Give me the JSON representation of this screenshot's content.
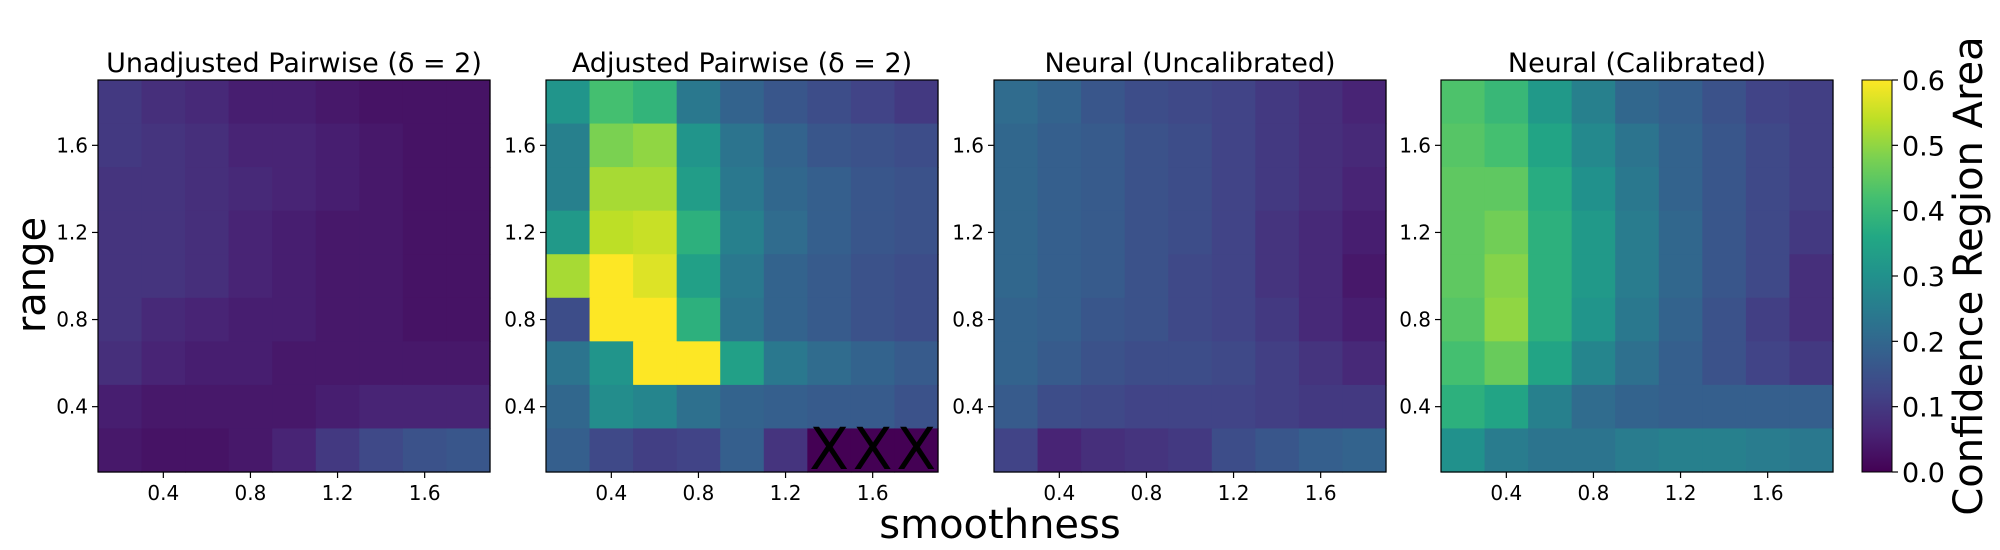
{
  "chart_data": {
    "type": "heatmap",
    "xlabel": "smoothness",
    "ylabel": "range",
    "x_ticks": [
      "0.4",
      "0.8",
      "1.2",
      "1.6"
    ],
    "y_ticks": [
      "0.4",
      "0.8",
      "1.2",
      "1.6"
    ],
    "x_range": [
      0.1,
      1.9
    ],
    "y_range": [
      0.1,
      1.9
    ],
    "grid_size": 9,
    "grid_centers": [
      0.2,
      0.4,
      0.6,
      0.8,
      1.0,
      1.2,
      1.4,
      1.6,
      1.8
    ],
    "colormap": "viridis",
    "colorbar": {
      "label": "Confidence Region Area",
      "range": [
        0.0,
        0.6
      ],
      "ticks": [
        "0.0",
        "0.1",
        "0.2",
        "0.3",
        "0.4",
        "0.5",
        "0.6"
      ]
    },
    "panels": [
      {
        "title": "Unadjusted Pairwise (δ = 2)",
        "rows_top_to_bottom": [
          [
            0.1,
            0.08,
            0.07,
            0.05,
            0.05,
            0.04,
            0.03,
            0.03,
            0.03
          ],
          [
            0.1,
            0.09,
            0.08,
            0.06,
            0.06,
            0.05,
            0.04,
            0.03,
            0.03
          ],
          [
            0.09,
            0.09,
            0.08,
            0.07,
            0.06,
            0.05,
            0.04,
            0.03,
            0.03
          ],
          [
            0.09,
            0.09,
            0.08,
            0.06,
            0.05,
            0.04,
            0.04,
            0.03,
            0.03
          ],
          [
            0.09,
            0.09,
            0.08,
            0.06,
            0.05,
            0.04,
            0.04,
            0.03,
            0.03
          ],
          [
            0.09,
            0.07,
            0.06,
            0.05,
            0.05,
            0.04,
            0.04,
            0.03,
            0.03
          ],
          [
            0.08,
            0.06,
            0.05,
            0.05,
            0.04,
            0.04,
            0.04,
            0.04,
            0.04
          ],
          [
            0.05,
            0.04,
            0.04,
            0.04,
            0.04,
            0.05,
            0.06,
            0.06,
            0.06
          ],
          [
            0.04,
            0.03,
            0.03,
            0.04,
            0.06,
            0.1,
            0.13,
            0.15,
            0.16
          ]
        ]
      },
      {
        "title": "Adjusted Pairwise (δ = 2)",
        "rows_top_to_bottom": [
          [
            0.31,
            0.42,
            0.39,
            0.24,
            0.19,
            0.16,
            0.14,
            0.12,
            0.1
          ],
          [
            0.26,
            0.48,
            0.5,
            0.31,
            0.23,
            0.19,
            0.16,
            0.15,
            0.14
          ],
          [
            0.26,
            0.52,
            0.52,
            0.33,
            0.24,
            0.2,
            0.18,
            0.16,
            0.15
          ],
          [
            0.32,
            0.54,
            0.55,
            0.38,
            0.26,
            0.21,
            0.18,
            0.16,
            0.15
          ],
          [
            0.52,
            0.6,
            0.57,
            0.34,
            0.24,
            0.19,
            0.17,
            0.15,
            0.14
          ],
          [
            0.14,
            0.6,
            0.6,
            0.38,
            0.23,
            0.19,
            0.17,
            0.15,
            0.14
          ],
          [
            0.23,
            0.31,
            0.6,
            0.6,
            0.34,
            0.24,
            0.21,
            0.19,
            0.17
          ],
          [
            0.2,
            0.29,
            0.27,
            0.22,
            0.19,
            0.18,
            0.17,
            0.17,
            0.15
          ],
          [
            0.18,
            0.13,
            0.11,
            0.12,
            0.18,
            0.09,
            null,
            null,
            null
          ]
        ],
        "missing_marker": "X"
      },
      {
        "title": "Neural (Uncalibrated)",
        "rows_top_to_bottom": [
          [
            0.21,
            0.19,
            0.16,
            0.14,
            0.13,
            0.12,
            0.1,
            0.08,
            0.06
          ],
          [
            0.2,
            0.18,
            0.17,
            0.15,
            0.14,
            0.12,
            0.1,
            0.08,
            0.07
          ],
          [
            0.2,
            0.18,
            0.17,
            0.15,
            0.14,
            0.12,
            0.1,
            0.08,
            0.06
          ],
          [
            0.2,
            0.18,
            0.17,
            0.15,
            0.14,
            0.12,
            0.09,
            0.07,
            0.05
          ],
          [
            0.2,
            0.18,
            0.17,
            0.15,
            0.13,
            0.12,
            0.09,
            0.07,
            0.04
          ],
          [
            0.19,
            0.18,
            0.16,
            0.15,
            0.13,
            0.12,
            0.1,
            0.07,
            0.05
          ],
          [
            0.19,
            0.17,
            0.15,
            0.14,
            0.14,
            0.13,
            0.11,
            0.09,
            0.07
          ],
          [
            0.17,
            0.14,
            0.13,
            0.12,
            0.12,
            0.12,
            0.11,
            0.1,
            0.1
          ],
          [
            0.12,
            0.06,
            0.08,
            0.09,
            0.1,
            0.14,
            0.16,
            0.18,
            0.19
          ]
        ]
      },
      {
        "title": "Neural (Calibrated)",
        "rows_top_to_bottom": [
          [
            0.43,
            0.4,
            0.32,
            0.26,
            0.2,
            0.18,
            0.15,
            0.12,
            0.11
          ],
          [
            0.44,
            0.42,
            0.35,
            0.28,
            0.23,
            0.19,
            0.16,
            0.13,
            0.11
          ],
          [
            0.45,
            0.45,
            0.37,
            0.3,
            0.24,
            0.19,
            0.16,
            0.13,
            0.11
          ],
          [
            0.45,
            0.47,
            0.38,
            0.32,
            0.25,
            0.2,
            0.16,
            0.13,
            0.1
          ],
          [
            0.45,
            0.49,
            0.38,
            0.32,
            0.25,
            0.2,
            0.16,
            0.13,
            0.08
          ],
          [
            0.44,
            0.5,
            0.38,
            0.31,
            0.24,
            0.19,
            0.15,
            0.11,
            0.08
          ],
          [
            0.42,
            0.46,
            0.35,
            0.27,
            0.22,
            0.18,
            0.15,
            0.12,
            0.1
          ],
          [
            0.38,
            0.35,
            0.26,
            0.21,
            0.19,
            0.18,
            0.18,
            0.18,
            0.18
          ],
          [
            0.3,
            0.25,
            0.23,
            0.23,
            0.25,
            0.26,
            0.26,
            0.25,
            0.24
          ]
        ]
      }
    ]
  }
}
